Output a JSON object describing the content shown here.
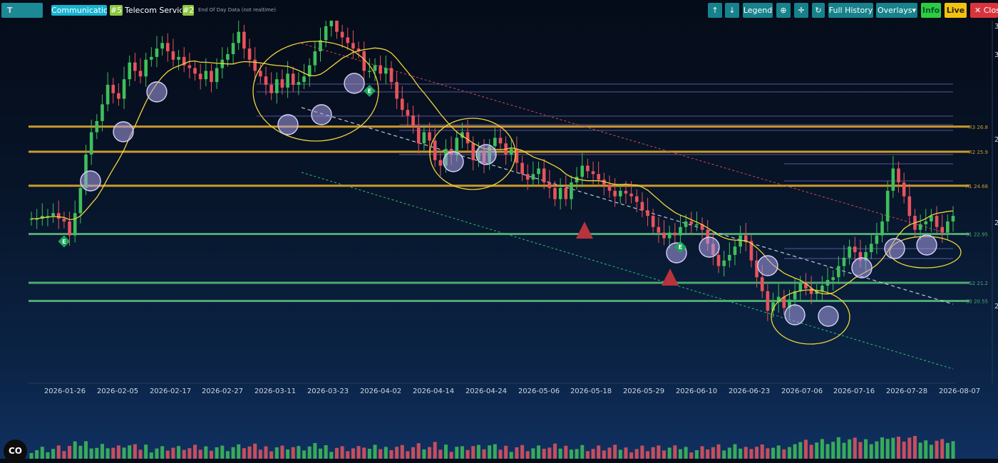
{
  "toolbar": {
    "ticker": "T",
    "sector": "Communication",
    "sector_rank": "#5",
    "industry": "Telecom Services",
    "industry_rank": "#2",
    "data_note": "End Of Day Data (not realtime)",
    "buttons": {
      "up": "↑",
      "down": "↓",
      "legend": "Legend",
      "zoom": "⊕",
      "crosshair": "✛",
      "refresh": "↻",
      "full_history": "Full History",
      "overlays": "Overlays▾",
      "info": "Info",
      "live": "Live",
      "close": "✕ Close"
    }
  },
  "logo_text": "CO",
  "colors": {
    "up": "#3fbf5a",
    "down": "#e8535d",
    "resistance": "#c99a2e",
    "support": "#4fa873",
    "annotation": "#f2d43a",
    "circle": "#a89ee6"
  },
  "chart_data": {
    "type": "candlestick",
    "x_tick_labels": [
      "2026-01-26",
      "2026-02-05",
      "2026-02-17",
      "2026-02-27",
      "2026-03-11",
      "2026-03-23",
      "2026-04-02",
      "2026-04-14",
      "2026-04-24",
      "2026-05-06",
      "2026-05-18",
      "2026-05-29",
      "2026-06-10",
      "2026-06-23",
      "2026-07-06",
      "2026-07-16",
      "2026-07-28",
      "2026-08-07"
    ],
    "y_tick_labels": [
      "3",
      "3",
      "2",
      "2",
      "2"
    ],
    "levels": [
      {
        "name": "R3",
        "label": "R3 26.8",
        "value": 26.8,
        "kind": "resistance"
      },
      {
        "name": "R2",
        "label": "R2 25.9",
        "value": 25.9,
        "kind": "resistance"
      },
      {
        "name": "R1",
        "label": "R1 24.68",
        "value": 24.68,
        "kind": "resistance"
      },
      {
        "name": "S1",
        "label": "S1 22.95",
        "value": 22.95,
        "kind": "support"
      },
      {
        "name": "S2",
        "label": "S2 21.2",
        "value": 21.2,
        "kind": "support"
      },
      {
        "name": "S3",
        "label": "S3 20.55",
        "value": 20.55,
        "kind": "support"
      }
    ],
    "ylim": [
      17.6,
      30.6
    ],
    "earnings_marker": "E",
    "earnings_bar_index": [
      6,
      62,
      119
    ],
    "candles_close": [
      23.5,
      23.5,
      23.6,
      23.6,
      23.7,
      23.5,
      23.4,
      22.9,
      23.7,
      24.6,
      25.8,
      26.6,
      27.0,
      27.6,
      28.3,
      28.0,
      27.8,
      28.5,
      29.1,
      28.8,
      28.6,
      29.2,
      29.3,
      29.6,
      29.8,
      29.5,
      29.2,
      29.3,
      29.0,
      28.9,
      28.7,
      28.5,
      28.8,
      28.4,
      28.9,
      29.2,
      29.4,
      29.8,
      30.2,
      29.6,
      29.2,
      28.8,
      28.6,
      28.3,
      28.0,
      28.5,
      28.2,
      28.7,
      28.3,
      28.4,
      28.6,
      29.0,
      29.5,
      29.9,
      30.4,
      30.6,
      30.2,
      30.0,
      29.8,
      29.6,
      29.5,
      28.8,
      28.8,
      29.0,
      28.7,
      28.9,
      28.4,
      27.8,
      27.4,
      27.2,
      26.8,
      26.2,
      26.6,
      26.3,
      25.6,
      25.4,
      26.0,
      25.8,
      26.4,
      26.6,
      26.2,
      25.6,
      25.9,
      25.5,
      26.1,
      26.4,
      26.2,
      25.8,
      26.0,
      25.5,
      25.1,
      24.9,
      25.1,
      25.3,
      24.8,
      24.6,
      24.2,
      24.6,
      24.2,
      24.8,
      25.0,
      25.4,
      25.2,
      25.1,
      24.9,
      24.7,
      24.5,
      24.3,
      24.5,
      24.4,
      24.3,
      24.1,
      23.8,
      23.6,
      23.2,
      23.0,
      22.8,
      23.0,
      22.9,
      23.2,
      23.4,
      23.3,
      23.3,
      23.1,
      22.6,
      22.2,
      21.8,
      22.0,
      22.2,
      22.5,
      22.9,
      22.7,
      22.0,
      21.4,
      20.9,
      20.2,
      20.5,
      20.7,
      20.3,
      20.6,
      20.9,
      21.2,
      21.0,
      20.8,
      20.9,
      21.1,
      21.3,
      21.4,
      21.8,
      22.1,
      22.5,
      22.3,
      22.0,
      22.3,
      22.6,
      22.9,
      23.4,
      24.5,
      25.3,
      24.8,
      24.3,
      23.6,
      23.1,
      23.3,
      23.4,
      23.6,
      23.2,
      23.0,
      23.4,
      23.6
    ]
  }
}
